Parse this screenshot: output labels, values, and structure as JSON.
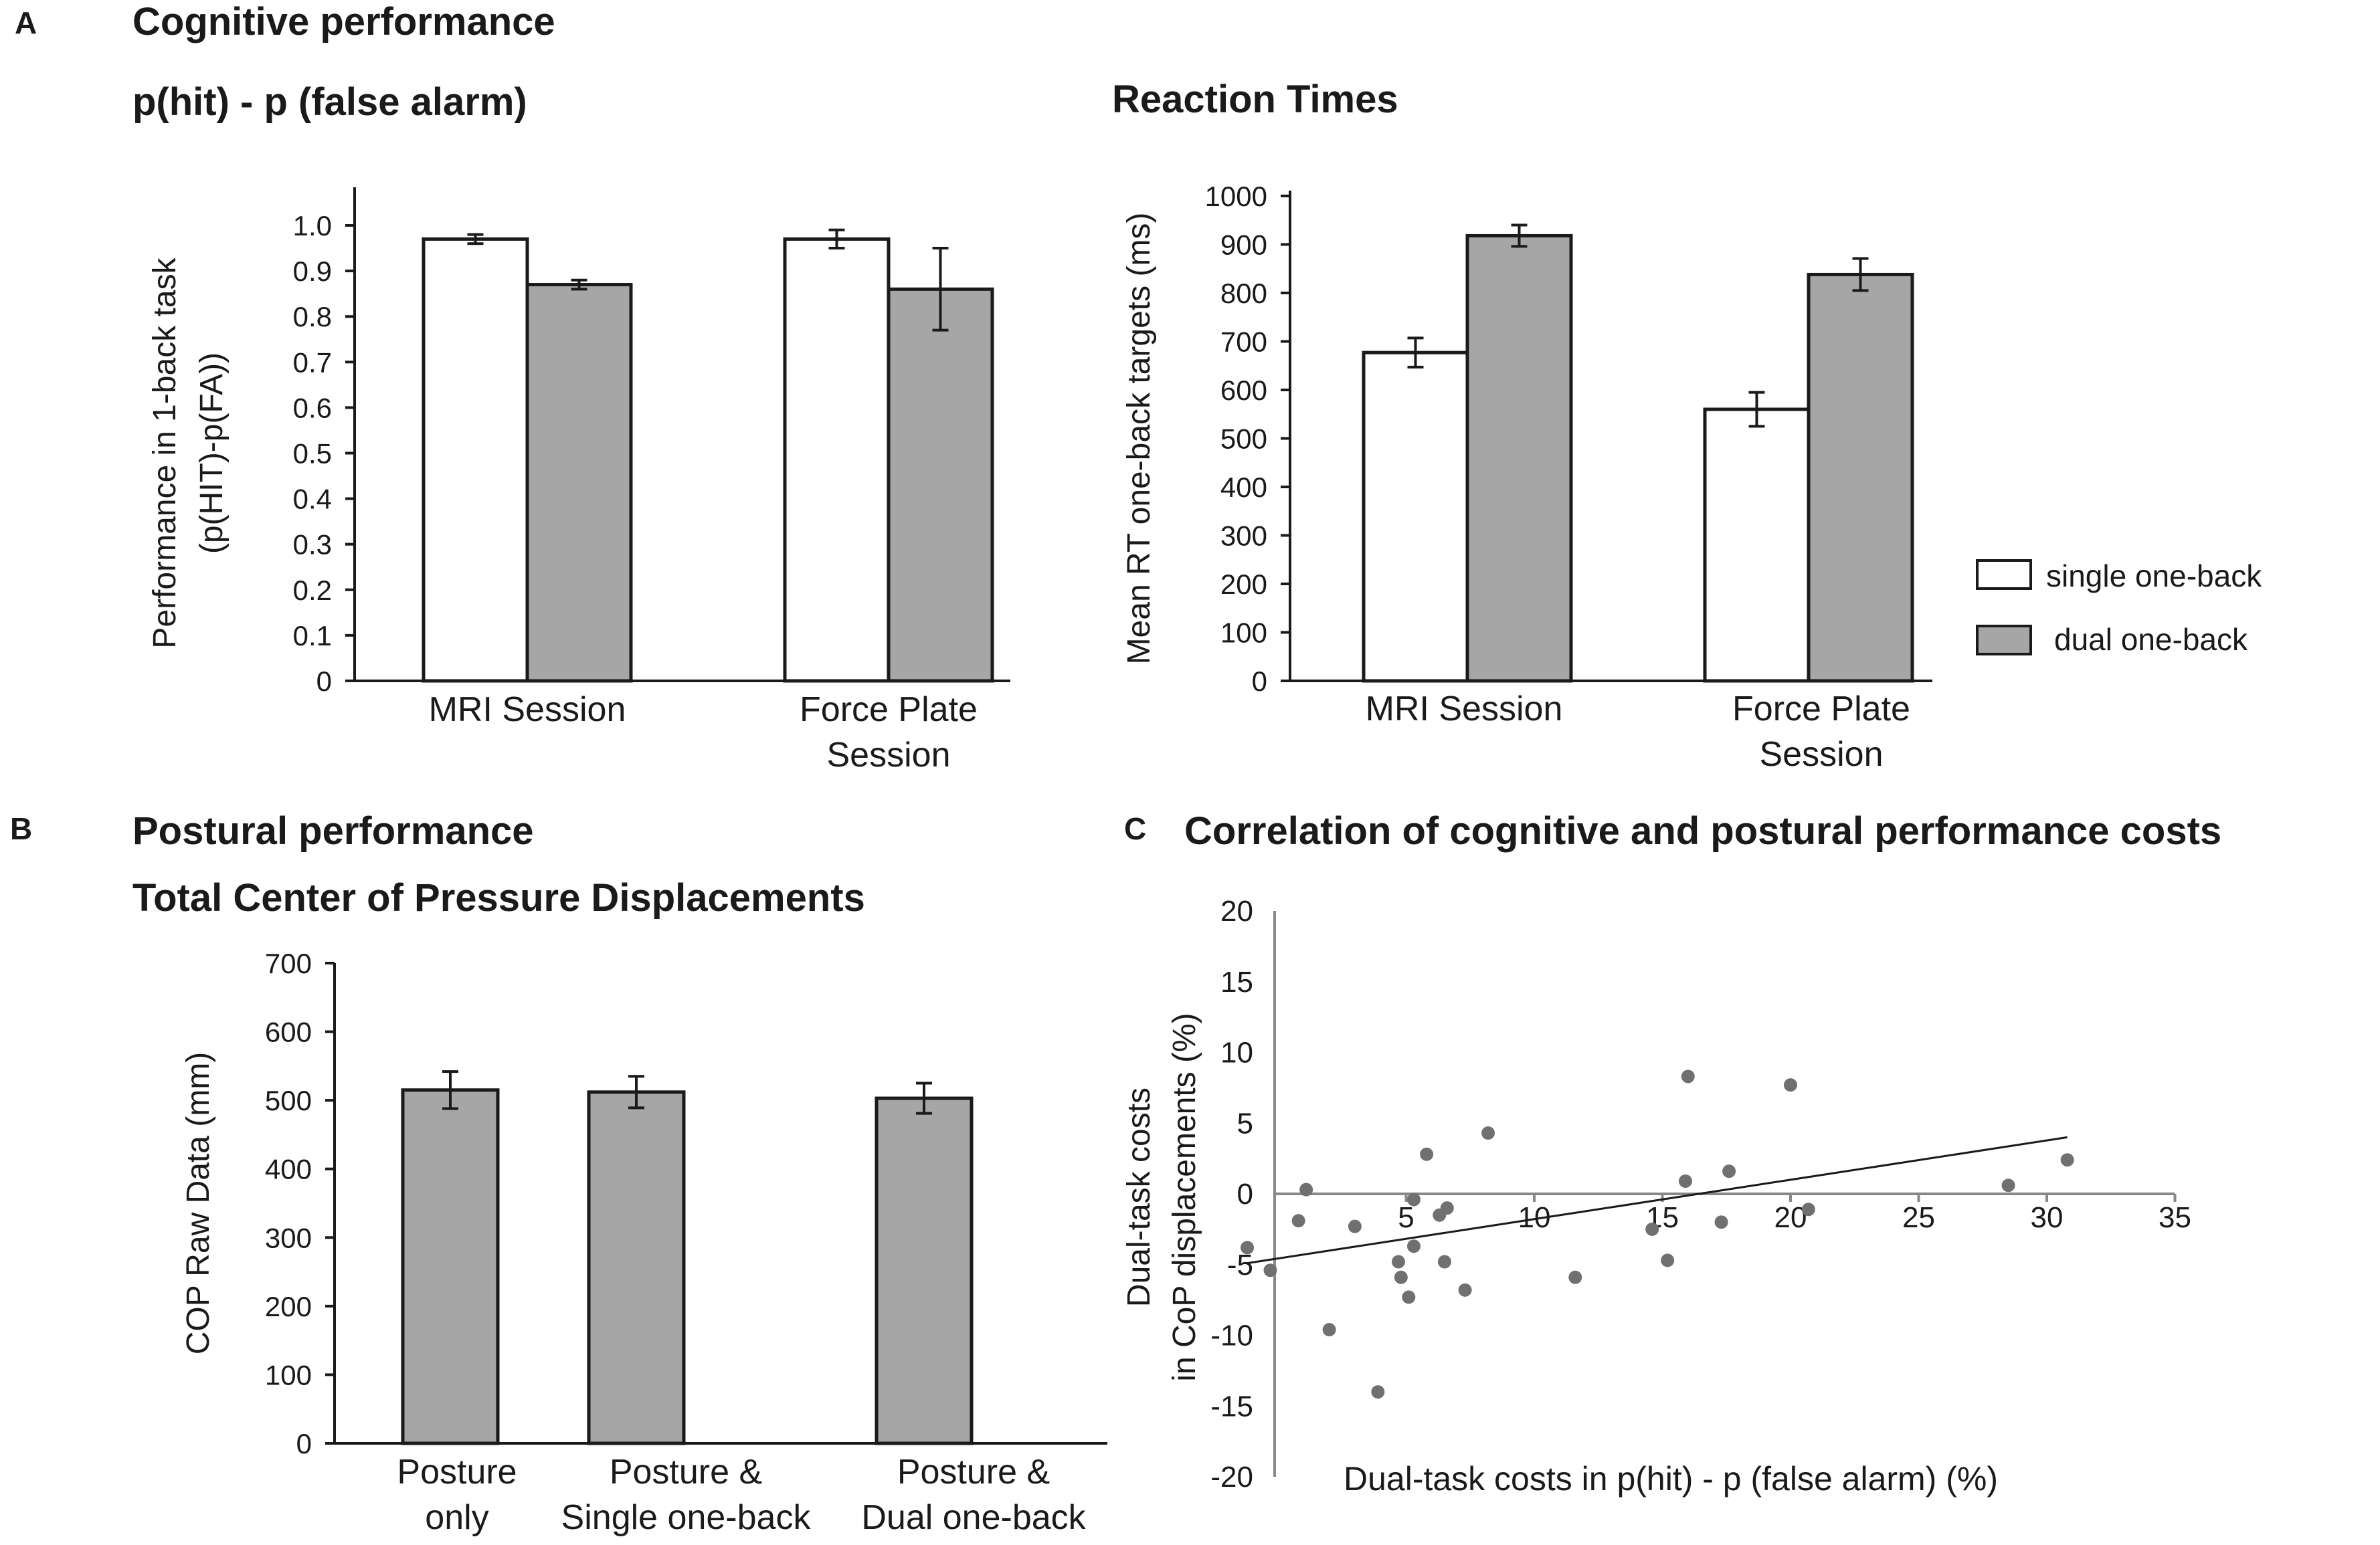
{
  "panels": {
    "A": {
      "letter": "A",
      "heading": "Cognitive performance",
      "subheading": "p(hit) - p (false alarm)"
    },
    "B": {
      "letter": "B",
      "heading": "Postural performance",
      "subheading": "Total Center of Pressure Displacements"
    },
    "C": {
      "letter": "C",
      "heading": "Correlation of cognitive and postural performance costs"
    }
  },
  "legend": {
    "items": [
      {
        "label": "single one-back",
        "color": "#ffffff"
      },
      {
        "label": "dual one-back",
        "color": "#a6a6a6"
      }
    ]
  },
  "colors": {
    "single": "#ffffff",
    "dual": "#a6a6a6",
    "axis": "#1a1a1a",
    "point": "#707070"
  },
  "chart_data": [
    {
      "id": "A1",
      "type": "bar",
      "title": "",
      "ylabel_lines": [
        "Performance in 1-back task",
        "(p(HIT)-p(FA))"
      ],
      "categories": [
        [
          "MRI Session"
        ],
        [
          "Force Plate",
          "Session"
        ]
      ],
      "series": [
        {
          "name": "single one-back",
          "values": [
            0.97,
            0.97
          ],
          "errors": [
            0.01,
            0.02
          ]
        },
        {
          "name": "dual one-back",
          "values": [
            0.87,
            0.86
          ],
          "errors": [
            0.01,
            0.09
          ]
        }
      ],
      "ylim": [
        0,
        1.0
      ],
      "yticks": [
        0,
        0.1,
        0.2,
        0.3,
        0.4,
        0.5,
        0.6,
        0.7,
        0.8,
        0.9,
        1.0
      ],
      "ytick_labels": [
        "0",
        "0.1",
        "0.2",
        "0.3",
        "0.4",
        "0.5",
        "0.6",
        "0.7",
        "0.8",
        "0.9",
        "1.0"
      ]
    },
    {
      "id": "A2",
      "type": "bar",
      "title": "Reaction Times",
      "ylabel_lines": [
        "Mean RT one-back targets  (ms)"
      ],
      "categories": [
        [
          "MRI Session"
        ],
        [
          "Force Plate",
          "Session"
        ]
      ],
      "series": [
        {
          "name": "single one-back",
          "values": [
            677,
            560
          ],
          "errors": [
            30,
            35
          ]
        },
        {
          "name": "dual one-back",
          "values": [
            918,
            838
          ],
          "errors": [
            22,
            33
          ]
        }
      ],
      "ylim": [
        0,
        1000
      ],
      "yticks": [
        0,
        100,
        200,
        300,
        400,
        500,
        600,
        700,
        800,
        900,
        1000
      ],
      "ytick_labels": [
        "0",
        "100",
        "200",
        "300",
        "400",
        "500",
        "600",
        "700",
        "800",
        "900",
        "1000"
      ]
    },
    {
      "id": "B",
      "type": "bar",
      "title": "",
      "ylabel_lines": [
        "COP Raw Data (mm)"
      ],
      "categories": [
        [
          "Posture",
          "only"
        ],
        [
          "Posture &",
          "Single one-back"
        ],
        [
          "Posture &",
          "Dual one-back"
        ]
      ],
      "series": [
        {
          "name": "COP",
          "values": [
            515,
            512,
            503
          ],
          "errors": [
            27,
            23,
            22
          ]
        }
      ],
      "ylim": [
        0,
        700
      ],
      "yticks": [
        0,
        100,
        200,
        300,
        400,
        500,
        600,
        700
      ],
      "ytick_labels": [
        "0",
        "100",
        "200",
        "300",
        "400",
        "500",
        "600",
        "700"
      ]
    },
    {
      "id": "C",
      "type": "scatter",
      "title": "",
      "xlabel": "Dual-task costs in p(hit) - p (false alarm) (%)",
      "ylabel_lines": [
        "Dual-task costs",
        "in CoP displacements (%)"
      ],
      "xlim": [
        -2,
        36
      ],
      "ylim": [
        -20,
        20
      ],
      "xticks": [
        5,
        10,
        15,
        20,
        25,
        30,
        35
      ],
      "xtick_labels": [
        "5",
        "10",
        "15",
        "20",
        "25",
        "30",
        "35"
      ],
      "yticks": [
        -20,
        -15,
        -10,
        -5,
        0,
        5,
        10,
        15,
        20
      ],
      "ytick_labels": [
        "-20",
        "-15",
        "-10",
        "-5",
        "0",
        "5",
        "10",
        "15",
        "20"
      ],
      "points": [
        {
          "x": -1.2,
          "y": -3.8
        },
        {
          "x": -0.3,
          "y": -5.4
        },
        {
          "x": 0.8,
          "y": -1.9
        },
        {
          "x": 1.1,
          "y": 0.3
        },
        {
          "x": 2.0,
          "y": -9.6
        },
        {
          "x": 3.0,
          "y": -2.3
        },
        {
          "x": 3.9,
          "y": -14.0
        },
        {
          "x": 4.7,
          "y": -4.8
        },
        {
          "x": 4.8,
          "y": -5.9
        },
        {
          "x": 5.1,
          "y": -7.3
        },
        {
          "x": 5.3,
          "y": -0.4
        },
        {
          "x": 5.3,
          "y": -3.7
        },
        {
          "x": 5.8,
          "y": 2.8
        },
        {
          "x": 6.3,
          "y": -1.5
        },
        {
          "x": 6.5,
          "y": -4.8
        },
        {
          "x": 6.6,
          "y": -1.0
        },
        {
          "x": 7.3,
          "y": -6.8
        },
        {
          "x": 8.2,
          "y": 4.3
        },
        {
          "x": 11.6,
          "y": -5.9
        },
        {
          "x": 14.6,
          "y": -2.5
        },
        {
          "x": 15.2,
          "y": -4.7
        },
        {
          "x": 15.9,
          "y": 0.9
        },
        {
          "x": 16.0,
          "y": 8.3
        },
        {
          "x": 17.3,
          "y": -2.0
        },
        {
          "x": 17.6,
          "y": 1.6
        },
        {
          "x": 20.0,
          "y": 7.7
        },
        {
          "x": 20.7,
          "y": -1.1
        },
        {
          "x": 28.5,
          "y": 0.6
        },
        {
          "x": 30.8,
          "y": 2.4
        }
      ],
      "trendline": {
        "x": [
          -1.2,
          30.8
        ],
        "y": [
          -4.9,
          4.0
        ]
      }
    }
  ]
}
